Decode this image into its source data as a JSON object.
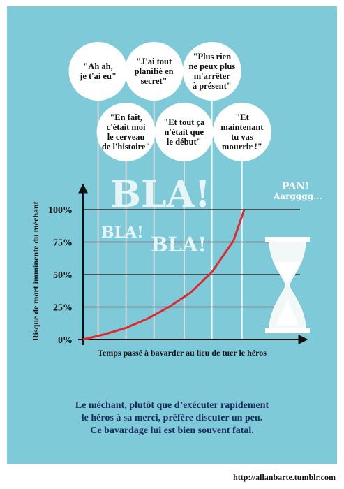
{
  "chart_data": {
    "type": "line",
    "title": "",
    "xlabel": "Temps passé à bavarder au lieu de tuer le héros",
    "ylabel": "Risque de mort imminente du méchant",
    "yticks": [
      "0%",
      "25%",
      "50%",
      "75%",
      "100%"
    ],
    "ylim": [
      0,
      100
    ],
    "xlim": [
      0,
      100
    ],
    "grid": true,
    "series": [
      {
        "color": "#e0282e",
        "x": [
          0,
          10,
          20,
          30,
          40,
          50,
          60,
          70,
          75
        ],
        "y": [
          0,
          4,
          9,
          16,
          25,
          36,
          52,
          76,
          100
        ]
      }
    ],
    "speech_bubbles": [
      {
        "lines": [
          "\"Ah ah,",
          "je t'ai eu\""
        ],
        "x": 7
      },
      {
        "lines": [
          "\"En fait,",
          "c'était moi",
          "le cerveau",
          "de l'histoire\""
        ],
        "x": 20
      },
      {
        "lines": [
          "\"J'ai tout",
          "planifié  en",
          "secret\""
        ],
        "x": 33
      },
      {
        "lines": [
          "\"Et tout ça",
          "n'était que",
          "le début\""
        ],
        "x": 47
      },
      {
        "lines": [
          "\"Plus rien",
          "ne peux plus",
          "m'arrêter",
          "à présent\""
        ],
        "x": 60
      },
      {
        "lines": [
          "\"Et",
          "maintenant",
          "tu vas",
          "mourrir !\""
        ],
        "x": 74
      }
    ],
    "annotations": [
      "BLA!",
      "BLA!",
      "BLA!",
      "PAN!",
      "Aargggg..."
    ]
  },
  "caption": {
    "line1": "Le méchant, plutôt que d’exécuter rapidement",
    "line2": "le héros à sa merci,  préfère discuter un peu.",
    "line3": "Ce bavardage lui est bien souvent fatal."
  },
  "url": "http://allanbarte.tumblr.com",
  "colors": {
    "background": "#7ecad8",
    "curve": "#e0282e",
    "bubble": "#ffffff",
    "caption": "#1a2a5e"
  }
}
